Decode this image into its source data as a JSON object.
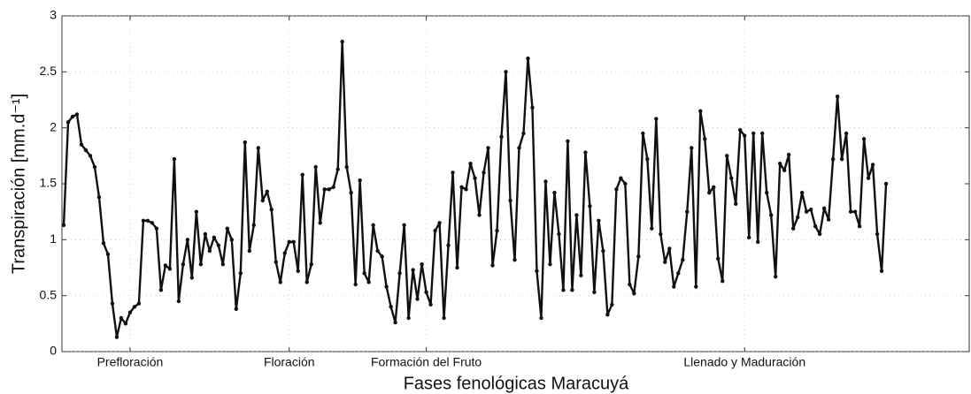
{
  "chart_data": {
    "type": "line",
    "x_label": "Fases fenológicas Maracuyá",
    "y_label": "Transpiración [mm.d⁻¹]",
    "categories": [
      null,
      null,
      null,
      null,
      null,
      null,
      null,
      null,
      null,
      null,
      null,
      null,
      null,
      null,
      null,
      "Prefloración",
      null,
      null,
      null,
      null,
      null,
      null,
      null,
      null,
      null,
      null,
      null,
      null,
      null,
      null,
      null,
      null,
      null,
      null,
      null,
      null,
      null,
      null,
      null,
      null,
      null,
      null,
      null,
      null,
      null,
      null,
      null,
      null,
      null,
      null,
      null,
      "Floración",
      null,
      null,
      null,
      null,
      null,
      null,
      null,
      null,
      null,
      null,
      null,
      null,
      null,
      null,
      null,
      null,
      null,
      null,
      null,
      null,
      null,
      null,
      null,
      null,
      null,
      null,
      null,
      null,
      null,
      null,
      "Formación del Fruto",
      null,
      null,
      null,
      null,
      null,
      null,
      null,
      null,
      null,
      null,
      null,
      null,
      null,
      null,
      null,
      null,
      null,
      null,
      null,
      null,
      null,
      null,
      null,
      null,
      null,
      null,
      null,
      null,
      null,
      null,
      null,
      null,
      null,
      null,
      null,
      null,
      null,
      null,
      null,
      null,
      null,
      null,
      null,
      null,
      null,
      null,
      null,
      null,
      null,
      null,
      null,
      null,
      null,
      null,
      null,
      null,
      null,
      null,
      null,
      null,
      null,
      null,
      null,
      null,
      null,
      null,
      null,
      null,
      null,
      null,
      null,
      "Llenado y Maduración",
      null,
      null,
      null,
      null,
      null,
      null,
      null,
      null,
      null,
      null,
      null,
      null,
      null,
      null,
      null,
      null,
      null,
      null,
      null,
      null,
      null,
      null,
      null,
      null,
      null,
      null,
      null,
      null,
      null,
      null,
      null,
      null
    ],
    "values": [
      1.13,
      2.05,
      2.1,
      2.12,
      1.85,
      1.8,
      1.75,
      1.65,
      1.38,
      0.97,
      0.87,
      0.43,
      0.13,
      0.3,
      0.25,
      0.35,
      0.4,
      0.43,
      1.17,
      1.17,
      1.15,
      1.1,
      0.55,
      0.77,
      0.74,
      1.72,
      0.45,
      0.78,
      1.0,
      0.66,
      1.25,
      0.78,
      1.05,
      0.9,
      1.02,
      0.95,
      0.78,
      1.1,
      1.0,
      0.38,
      0.7,
      1.87,
      0.9,
      1.13,
      1.82,
      1.35,
      1.43,
      1.27,
      0.8,
      0.62,
      0.88,
      0.98,
      0.98,
      0.72,
      1.58,
      0.62,
      0.78,
      1.65,
      1.15,
      1.45,
      1.45,
      1.47,
      1.63,
      2.77,
      1.65,
      1.42,
      0.6,
      1.53,
      0.7,
      0.62,
      1.13,
      0.9,
      0.85,
      0.58,
      0.4,
      0.26,
      0.7,
      1.13,
      0.3,
      0.73,
      0.47,
      0.78,
      0.53,
      0.42,
      1.08,
      1.15,
      0.3,
      0.95,
      1.6,
      0.75,
      1.47,
      1.45,
      1.68,
      1.55,
      1.22,
      1.6,
      1.82,
      0.77,
      1.08,
      1.92,
      2.5,
      1.35,
      0.82,
      1.82,
      1.95,
      2.62,
      2.18,
      0.72,
      0.3,
      1.52,
      0.78,
      1.42,
      1.05,
      0.55,
      1.88,
      0.55,
      1.22,
      0.68,
      1.78,
      1.3,
      0.53,
      1.17,
      0.9,
      0.33,
      0.42,
      1.45,
      1.55,
      1.5,
      0.6,
      0.52,
      0.85,
      1.95,
      1.72,
      1.1,
      2.08,
      1.05,
      0.8,
      0.92,
      0.58,
      0.7,
      0.82,
      1.25,
      1.82,
      0.58,
      2.15,
      1.9,
      1.42,
      1.47,
      0.83,
      0.63,
      1.75,
      1.55,
      1.32,
      1.98,
      1.93,
      1.02,
      1.95,
      0.98,
      1.95,
      1.42,
      1.22,
      0.67,
      1.68,
      1.62,
      1.76,
      1.1,
      1.2,
      1.42,
      1.25,
      1.27,
      1.12,
      1.05,
      1.28,
      1.18,
      1.72,
      2.28,
      1.72,
      1.95,
      1.25,
      1.25,
      1.12,
      1.9,
      1.55,
      1.67,
      1.05,
      0.72,
      1.5
    ],
    "color": "#111111",
    "ylim": [
      0,
      3
    ],
    "yticks": [
      0,
      0.5,
      1,
      1.5,
      2,
      2.5,
      3
    ],
    "grid": true
  }
}
